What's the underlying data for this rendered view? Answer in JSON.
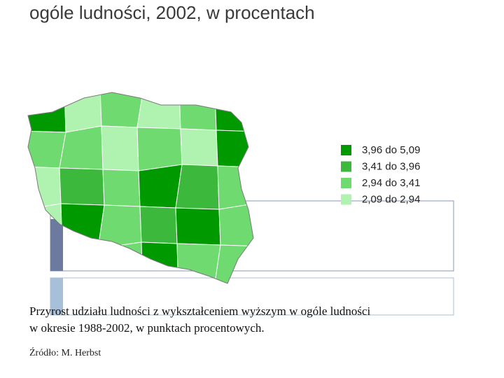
{
  "title": "ogóle ludności, 2002, w procentach",
  "legend": [
    {
      "label": "3,96 do 5,09",
      "color": "#009a00"
    },
    {
      "label": "3,41 do 3,96",
      "color": "#3cb83c"
    },
    {
      "label": "2,94 do 3,41",
      "color": "#6fda6f"
    },
    {
      "label": "2,09 do 2,94",
      "color": "#b0f2b0"
    }
  ],
  "caption": [
    "Przyrost udziału ludności z wykształceniem wyższym w ogóle ludności",
    "w okresie 1988-2002, w punktach procentowych."
  ],
  "source": "Źródło: M. Herbst"
}
